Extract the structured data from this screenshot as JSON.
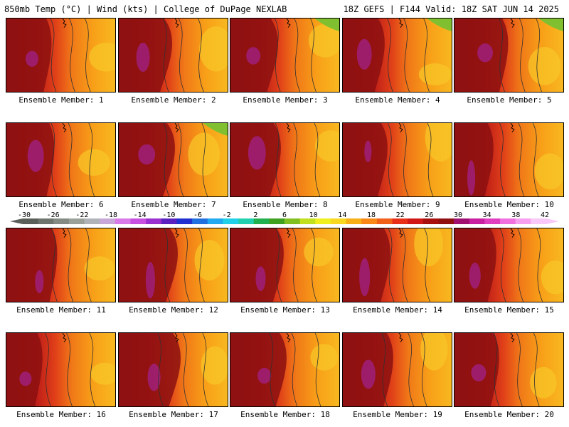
{
  "header": {
    "left": "850mb Temp (°C) | Wind (kts) | College of DuPage NEXLAB",
    "right": "18Z GEFS | F144 Valid: 18Z SAT JUN 14 2025"
  },
  "members": [
    "Ensemble Member: 1",
    "Ensemble Member: 2",
    "Ensemble Member: 3",
    "Ensemble Member: 4",
    "Ensemble Member: 5",
    "Ensemble Member: 6",
    "Ensemble Member: 7",
    "Ensemble Member: 8",
    "Ensemble Member: 9",
    "Ensemble Member: 10",
    "Ensemble Member: 11",
    "Ensemble Member: 12",
    "Ensemble Member: 13",
    "Ensemble Member: 14",
    "Ensemble Member: 15",
    "Ensemble Member: 16",
    "Ensemble Member: 17",
    "Ensemble Member: 18",
    "Ensemble Member: 19",
    "Ensemble Member: 20"
  ],
  "colorbar": {
    "labels": [
      "-30",
      "-26",
      "-22",
      "-18",
      "-14",
      "-10",
      "-6",
      "-2",
      "2",
      "6",
      "10",
      "14",
      "18",
      "22",
      "26",
      "30",
      "34",
      "38",
      "42"
    ],
    "colors": [
      "#5a5f5a",
      "#6e746e",
      "#848a84",
      "#9aa09a",
      "#b0b4b8",
      "#c8a8d8",
      "#d87ae8",
      "#c850e0",
      "#9a30d0",
      "#5a20c0",
      "#2030d0",
      "#2070e0",
      "#20a8f0",
      "#20d0e8",
      "#20d0b0",
      "#20b050",
      "#40a020",
      "#80c020",
      "#c0e020",
      "#f0f020",
      "#f8d820",
      "#f8b018",
      "#f88818",
      "#f06018",
      "#e83018",
      "#d01818",
      "#a81010",
      "#901010",
      "#a01070",
      "#c820a0",
      "#e040c0",
      "#f070e0",
      "#f8a0f0",
      "#f8c8f8"
    ]
  }
}
